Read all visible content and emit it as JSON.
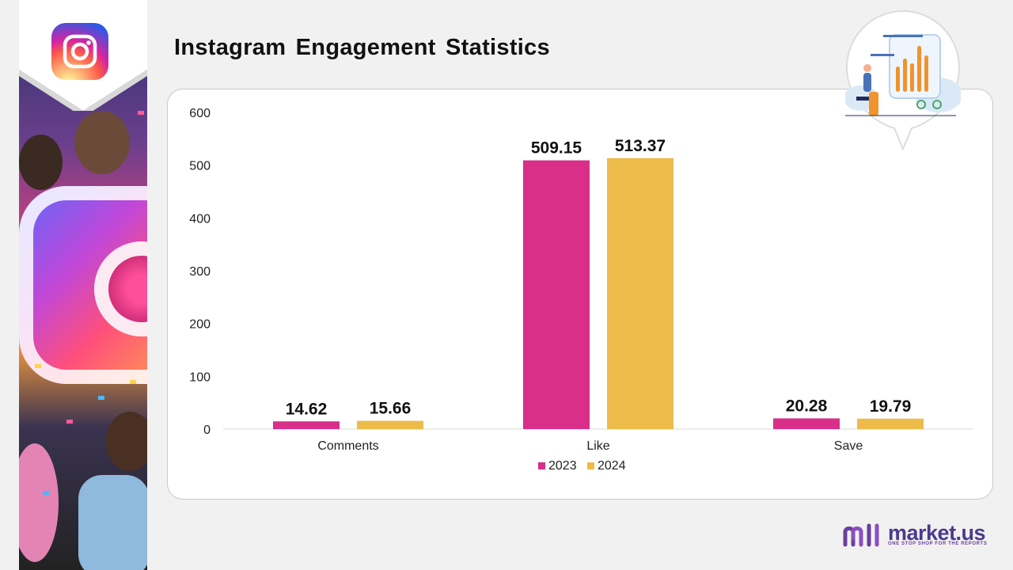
{
  "page": {
    "title": "Instagram Engagement Statistics"
  },
  "brand": {
    "name": "market.us",
    "tagline": "ONE STOP SHOP FOR THE REPORTS"
  },
  "colors": {
    "series_2023": "#d92e8a",
    "series_2024": "#ecbb4a",
    "axis_text": "#222222",
    "brand": "#4b3a8c"
  },
  "chart_data": {
    "type": "bar",
    "title": "Instagram Engagement Statistics",
    "categories": [
      "Comments",
      "Like",
      "Save"
    ],
    "series": [
      {
        "name": "2023",
        "values": [
          14.62,
          509.15,
          20.28
        ],
        "labels": [
          "14.62",
          "509.15",
          "20.28"
        ]
      },
      {
        "name": "2024",
        "values": [
          15.66,
          513.37,
          19.79
        ],
        "labels": [
          "15.66",
          "513.37",
          "19.79"
        ]
      }
    ],
    "ylim": [
      0,
      600
    ],
    "yticks": [
      "0",
      "100",
      "200",
      "300",
      "400",
      "500",
      "600"
    ],
    "xlabel": "",
    "ylabel": "",
    "grid": false,
    "legend": "bottom"
  }
}
